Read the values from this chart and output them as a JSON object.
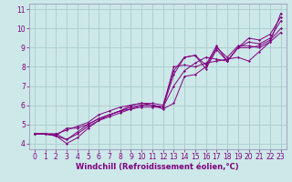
{
  "xlabel": "Windchill (Refroidissement éolien,°C)",
  "bg_color": "#cce8e8",
  "line_color": "#800080",
  "grid_color": "#aacccc",
  "spine_color": "#9999bb",
  "xlim": [
    -0.5,
    23.5
  ],
  "ylim": [
    3.7,
    11.3
  ],
  "xticks": [
    0,
    1,
    2,
    3,
    4,
    5,
    6,
    7,
    8,
    9,
    10,
    11,
    12,
    13,
    14,
    15,
    16,
    17,
    18,
    19,
    20,
    21,
    22,
    23
  ],
  "yticks": [
    4,
    5,
    6,
    7,
    8,
    9,
    10,
    11
  ],
  "tick_fontsize": 5.5,
  "xlabel_fontsize": 6.0,
  "series": [
    {
      "x": [
        0,
        1,
        2,
        3,
        4,
        5,
        6,
        7,
        8,
        9,
        10,
        11,
        12,
        13,
        14,
        15,
        16,
        17,
        18,
        19,
        20,
        21,
        22,
        23
      ],
      "y": [
        4.5,
        4.5,
        4.4,
        4.0,
        4.3,
        4.8,
        5.2,
        5.4,
        5.6,
        5.8,
        5.9,
        5.9,
        5.9,
        7.6,
        8.5,
        8.6,
        7.9,
        8.9,
        8.3,
        9.0,
        9.5,
        9.4,
        9.7,
        10.6
      ]
    },
    {
      "x": [
        0,
        1,
        2,
        3,
        4,
        5,
        6,
        7,
        8,
        9,
        10,
        11,
        12,
        13,
        14,
        15,
        16,
        17,
        18,
        19,
        20,
        21,
        22,
        23
      ],
      "y": [
        4.5,
        4.5,
        4.5,
        4.2,
        4.6,
        5.0,
        5.3,
        5.5,
        5.7,
        5.8,
        6.0,
        6.0,
        5.8,
        6.1,
        7.5,
        7.6,
        8.0,
        9.0,
        8.5,
        9.1,
        9.1,
        9.0,
        9.3,
        9.8
      ]
    },
    {
      "x": [
        0,
        1,
        2,
        3,
        4,
        5,
        6,
        7,
        8,
        9,
        10,
        11,
        12,
        13,
        14,
        15,
        16,
        17,
        18,
        19,
        20,
        21,
        22,
        23
      ],
      "y": [
        4.5,
        4.5,
        4.5,
        4.7,
        4.9,
        5.1,
        5.5,
        5.7,
        5.9,
        6.0,
        6.1,
        6.0,
        5.9,
        8.0,
        8.1,
        8.0,
        8.2,
        8.3,
        8.4,
        8.5,
        8.3,
        8.8,
        9.3,
        10.8
      ]
    },
    {
      "x": [
        0,
        1,
        2,
        3,
        4,
        5,
        6,
        7,
        8,
        9,
        10,
        11,
        12,
        13,
        14,
        15,
        16,
        17,
        18,
        19,
        20,
        21,
        22,
        23
      ],
      "y": [
        4.5,
        4.5,
        4.4,
        4.2,
        4.5,
        4.9,
        5.2,
        5.5,
        5.7,
        6.0,
        6.1,
        6.1,
        6.0,
        7.8,
        8.5,
        8.6,
        8.1,
        9.1,
        8.3,
        9.0,
        9.3,
        9.2,
        9.5,
        10.4
      ]
    },
    {
      "x": [
        0,
        1,
        2,
        3,
        4,
        5,
        6,
        7,
        8,
        9,
        10,
        11,
        12,
        13,
        14,
        15,
        16,
        17,
        18,
        19,
        20,
        21,
        22,
        23
      ],
      "y": [
        4.5,
        4.5,
        4.4,
        4.8,
        4.8,
        5.0,
        5.3,
        5.5,
        5.7,
        5.9,
        6.0,
        6.0,
        5.9,
        7.0,
        7.8,
        8.2,
        8.5,
        8.4,
        8.3,
        9.0,
        9.0,
        9.1,
        9.4,
        10.0
      ]
    }
  ]
}
